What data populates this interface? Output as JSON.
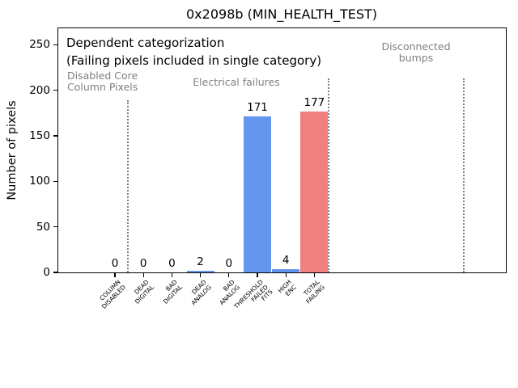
{
  "figure": {
    "background": "#ffffff"
  },
  "chart_data": {
    "type": "bar",
    "title": "0x2098b (MIN_HEALTH_TEST)",
    "ylabel": "Number of pixels",
    "xlabel": "",
    "categories": [
      "COLUMN\nDISABLED",
      "DEAD\nDIGITAL",
      "BAD\nDIGITAL",
      "DEAD\nANALOG",
      "BAD\nANALOG",
      "THRESHOLD\nFAILED\nFITS",
      "HIGH\nENC",
      "TOTAL\nFAILING"
    ],
    "values": [
      0,
      0,
      0,
      2,
      0,
      171,
      4,
      177
    ],
    "bar_colors": [
      "#6495ED",
      "#6495ED",
      "#6495ED",
      "#6495ED",
      "#6495ED",
      "#6495ED",
      "#6495ED",
      "#F08080"
    ],
    "yticks": [
      0,
      50,
      100,
      150,
      200,
      250
    ],
    "ylim": [
      0,
      268
    ],
    "grid": false,
    "legend": false,
    "annotations": {
      "note_line1": "Dependent categorization",
      "note_line2": "(Failing pixels included in single category)",
      "sections": [
        {
          "text": "Disabled Core\nColumn Pixels",
          "align": "left",
          "x": 83,
          "y": 87
        },
        {
          "text": "Electrical failures",
          "align": "center",
          "x": 292,
          "y": 95
        },
        {
          "text": "Disconnected\nbumps",
          "align": "center",
          "x": 514,
          "y": 51
        }
      ],
      "dividers": [
        {
          "x": 158,
          "y_top": 124
        },
        {
          "x": 406,
          "y_top": 97
        },
        {
          "x": 573,
          "y_top": 97
        }
      ]
    },
    "colors": {
      "bar_default": "#6495ED",
      "bar_total": "#F08080",
      "annotation_grey": "#7f7f7f",
      "axis": "#000000"
    }
  }
}
